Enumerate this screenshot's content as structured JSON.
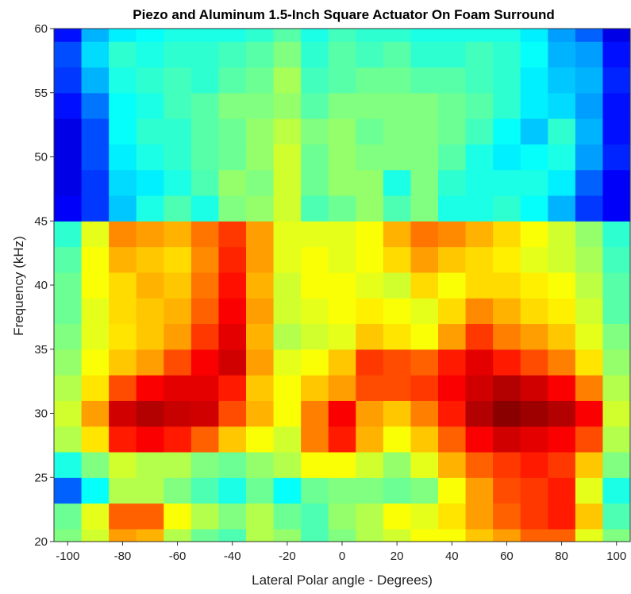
{
  "chart_data": {
    "type": "heatmap",
    "title": "Piezo and Aluminum 1.5-Inch Square Actuator On Foam Surround",
    "xlabel": "Lateral Polar angle - Degrees)",
    "ylabel": "Frequency (kHz)",
    "xlim": [
      -105,
      105
    ],
    "ylim": [
      20,
      60
    ],
    "xticks": [
      -100,
      -80,
      -60,
      -40,
      -20,
      0,
      20,
      40,
      60,
      80,
      100
    ],
    "yticks": [
      20,
      25,
      30,
      35,
      40,
      45,
      50,
      55,
      60
    ],
    "colormap": "jet",
    "color_scale": "relative level, 0 = low (dark blue) to 1 = high (dark red)",
    "grid": false,
    "x_centers": [
      -100,
      -90,
      -80,
      -70,
      -60,
      -50,
      -40,
      -30,
      -20,
      -10,
      0,
      10,
      20,
      30,
      40,
      50,
      60,
      70,
      80,
      90,
      100
    ],
    "y_centers": [
      20,
      22,
      24,
      26,
      28,
      30,
      32,
      34,
      36,
      38,
      40,
      42,
      44,
      46,
      48,
      50,
      52,
      54,
      56,
      58,
      60
    ],
    "z": [
      [
        0.5,
        0.58,
        0.72,
        0.7,
        0.55,
        0.48,
        0.45,
        0.55,
        0.52,
        0.45,
        0.5,
        0.55,
        0.58,
        0.62,
        0.62,
        0.68,
        0.72,
        0.78,
        0.78,
        0.6,
        0.5
      ],
      [
        0.48,
        0.6,
        0.78,
        0.78,
        0.62,
        0.55,
        0.5,
        0.55,
        0.48,
        0.45,
        0.52,
        0.55,
        0.62,
        0.6,
        0.65,
        0.72,
        0.78,
        0.82,
        0.85,
        0.68,
        0.45
      ],
      [
        0.22,
        0.38,
        0.55,
        0.55,
        0.5,
        0.45,
        0.4,
        0.48,
        0.38,
        0.48,
        0.5,
        0.5,
        0.48,
        0.5,
        0.62,
        0.72,
        0.8,
        0.82,
        0.85,
        0.6,
        0.4
      ],
      [
        0.4,
        0.5,
        0.58,
        0.55,
        0.55,
        0.5,
        0.48,
        0.52,
        0.55,
        0.62,
        0.62,
        0.58,
        0.52,
        0.6,
        0.7,
        0.78,
        0.82,
        0.85,
        0.82,
        0.68,
        0.5
      ],
      [
        0.55,
        0.65,
        0.85,
        0.88,
        0.85,
        0.78,
        0.68,
        0.62,
        0.58,
        0.75,
        0.85,
        0.7,
        0.62,
        0.68,
        0.78,
        0.88,
        0.92,
        0.9,
        0.88,
        0.8,
        0.55
      ],
      [
        0.58,
        0.72,
        0.92,
        0.95,
        0.93,
        0.92,
        0.8,
        0.7,
        0.62,
        0.75,
        0.88,
        0.72,
        0.68,
        0.75,
        0.85,
        0.95,
        0.99,
        0.97,
        0.95,
        0.88,
        0.58
      ],
      [
        0.55,
        0.65,
        0.8,
        0.88,
        0.9,
        0.9,
        0.85,
        0.68,
        0.62,
        0.68,
        0.72,
        0.8,
        0.8,
        0.82,
        0.88,
        0.92,
        0.95,
        0.92,
        0.88,
        0.75,
        0.55
      ],
      [
        0.52,
        0.62,
        0.68,
        0.72,
        0.8,
        0.88,
        0.92,
        0.72,
        0.6,
        0.62,
        0.68,
        0.82,
        0.8,
        0.78,
        0.85,
        0.9,
        0.85,
        0.8,
        0.75,
        0.65,
        0.52
      ],
      [
        0.5,
        0.6,
        0.65,
        0.68,
        0.72,
        0.82,
        0.9,
        0.7,
        0.55,
        0.58,
        0.6,
        0.68,
        0.65,
        0.62,
        0.72,
        0.82,
        0.75,
        0.72,
        0.68,
        0.6,
        0.5
      ],
      [
        0.48,
        0.6,
        0.66,
        0.68,
        0.7,
        0.78,
        0.88,
        0.72,
        0.58,
        0.6,
        0.62,
        0.64,
        0.62,
        0.6,
        0.66,
        0.74,
        0.7,
        0.66,
        0.64,
        0.58,
        0.46
      ],
      [
        0.48,
        0.62,
        0.66,
        0.7,
        0.68,
        0.76,
        0.86,
        0.7,
        0.58,
        0.62,
        0.62,
        0.6,
        0.58,
        0.66,
        0.62,
        0.66,
        0.66,
        0.64,
        0.62,
        0.56,
        0.46
      ],
      [
        0.46,
        0.62,
        0.7,
        0.68,
        0.66,
        0.74,
        0.84,
        0.72,
        0.6,
        0.62,
        0.6,
        0.62,
        0.66,
        0.72,
        0.68,
        0.66,
        0.64,
        0.6,
        0.58,
        0.54,
        0.44
      ],
      [
        0.42,
        0.6,
        0.74,
        0.72,
        0.7,
        0.76,
        0.82,
        0.72,
        0.6,
        0.6,
        0.6,
        0.62,
        0.7,
        0.76,
        0.74,
        0.7,
        0.66,
        0.62,
        0.58,
        0.52,
        0.42
      ],
      [
        0.12,
        0.18,
        0.32,
        0.4,
        0.45,
        0.4,
        0.5,
        0.52,
        0.58,
        0.45,
        0.48,
        0.52,
        0.45,
        0.5,
        0.4,
        0.4,
        0.42,
        0.38,
        0.3,
        0.18,
        0.12
      ],
      [
        0.1,
        0.18,
        0.34,
        0.36,
        0.4,
        0.45,
        0.52,
        0.5,
        0.58,
        0.48,
        0.52,
        0.52,
        0.4,
        0.5,
        0.42,
        0.4,
        0.4,
        0.4,
        0.36,
        0.22,
        0.12
      ],
      [
        0.1,
        0.2,
        0.36,
        0.4,
        0.42,
        0.46,
        0.48,
        0.52,
        0.58,
        0.48,
        0.52,
        0.5,
        0.5,
        0.5,
        0.46,
        0.4,
        0.36,
        0.38,
        0.4,
        0.28,
        0.16
      ],
      [
        0.1,
        0.2,
        0.38,
        0.42,
        0.42,
        0.46,
        0.48,
        0.52,
        0.56,
        0.5,
        0.52,
        0.48,
        0.5,
        0.5,
        0.48,
        0.44,
        0.38,
        0.32,
        0.42,
        0.3,
        0.14
      ],
      [
        0.14,
        0.24,
        0.38,
        0.4,
        0.44,
        0.46,
        0.5,
        0.5,
        0.52,
        0.46,
        0.5,
        0.5,
        0.5,
        0.5,
        0.48,
        0.46,
        0.42,
        0.36,
        0.34,
        0.28,
        0.14
      ],
      [
        0.18,
        0.3,
        0.4,
        0.42,
        0.44,
        0.42,
        0.46,
        0.48,
        0.54,
        0.44,
        0.46,
        0.48,
        0.48,
        0.46,
        0.46,
        0.44,
        0.42,
        0.36,
        0.32,
        0.3,
        0.16
      ],
      [
        0.2,
        0.34,
        0.42,
        0.4,
        0.42,
        0.42,
        0.44,
        0.46,
        0.5,
        0.42,
        0.46,
        0.44,
        0.46,
        0.42,
        0.42,
        0.44,
        0.42,
        0.38,
        0.3,
        0.28,
        0.14
      ],
      [
        0.14,
        0.3,
        0.36,
        0.38,
        0.4,
        0.4,
        0.4,
        0.42,
        0.46,
        0.4,
        0.44,
        0.42,
        0.42,
        0.4,
        0.4,
        0.4,
        0.4,
        0.36,
        0.28,
        0.22,
        0.1
      ]
    ]
  }
}
